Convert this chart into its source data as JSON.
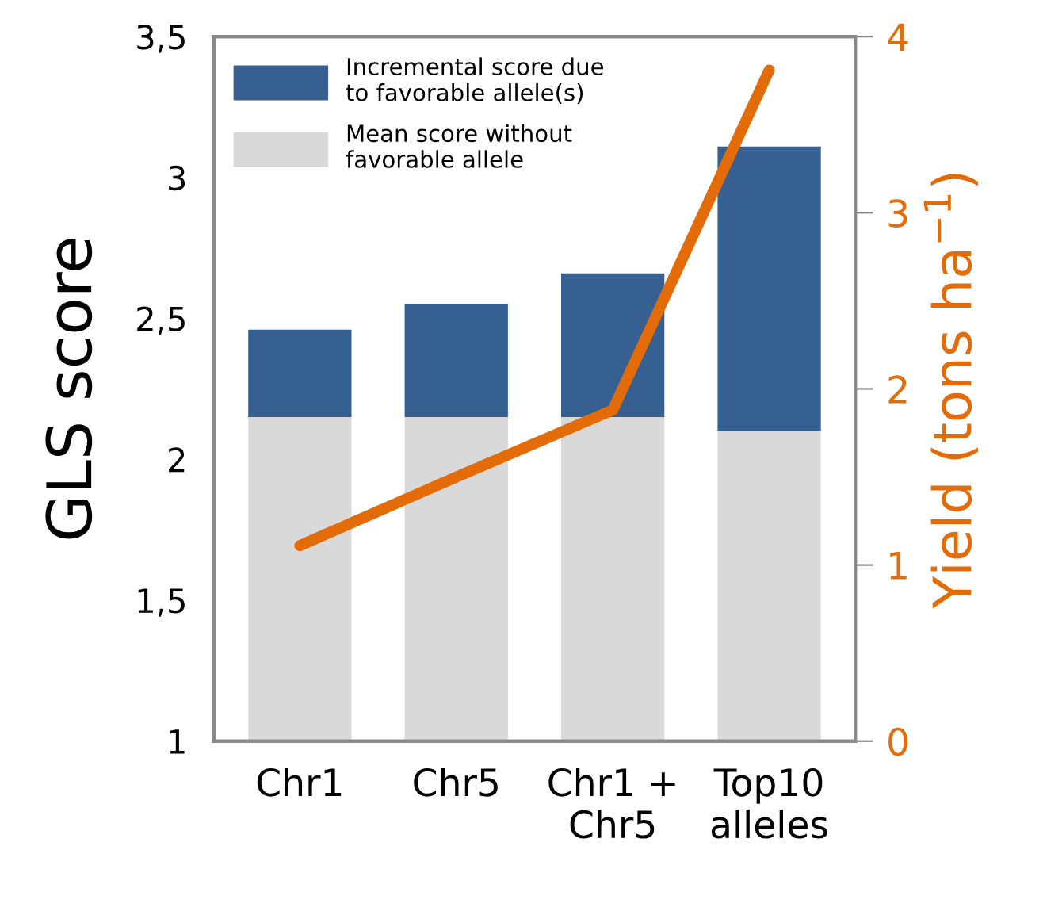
{
  "chart_data": {
    "type": "bar",
    "categories": [
      "Chr1",
      "Chr5",
      "Chr1 +\nChr5",
      "Top10\nalleles"
    ],
    "ylabel": "GLS score",
    "y2label": "Yield (tons ha$^{−1}$)",
    "series": [
      {
        "name": "Incremental score due\nto favorable allele(s)",
        "color": "#376092",
        "base": [
          2.15,
          2.15,
          2.15,
          2.1
        ],
        "values": [
          0.31,
          0.4,
          0.51,
          1.01
        ]
      },
      {
        "name": "Mean score without\nfavorable allele",
        "color": "#d9d9d9",
        "base": [
          1,
          1,
          1,
          1
        ],
        "values": [
          1.15,
          1.15,
          1.15,
          1.1
        ]
      },
      {
        "name": null,
        "type": "line",
        "axis": "y2",
        "color": "#e36c09",
        "values": [
          1.11,
          1.5,
          1.88,
          3.81
        ]
      }
    ],
    "ylim": [
      1,
      3.5
    ],
    "yticks": [
      1,
      {
        "value": 1.5,
        "label": "1,5"
      },
      2,
      {
        "value": 2.5,
        "label": "2,5"
      },
      3,
      {
        "value": 3.5,
        "label": "3,5"
      }
    ],
    "y2lim": [
      0,
      4
    ],
    "y2ticks": [
      0,
      1,
      2,
      3,
      4
    ],
    "grid": false,
    "legend": "top left",
    "marker": "none",
    "line_style": "solid"
  }
}
